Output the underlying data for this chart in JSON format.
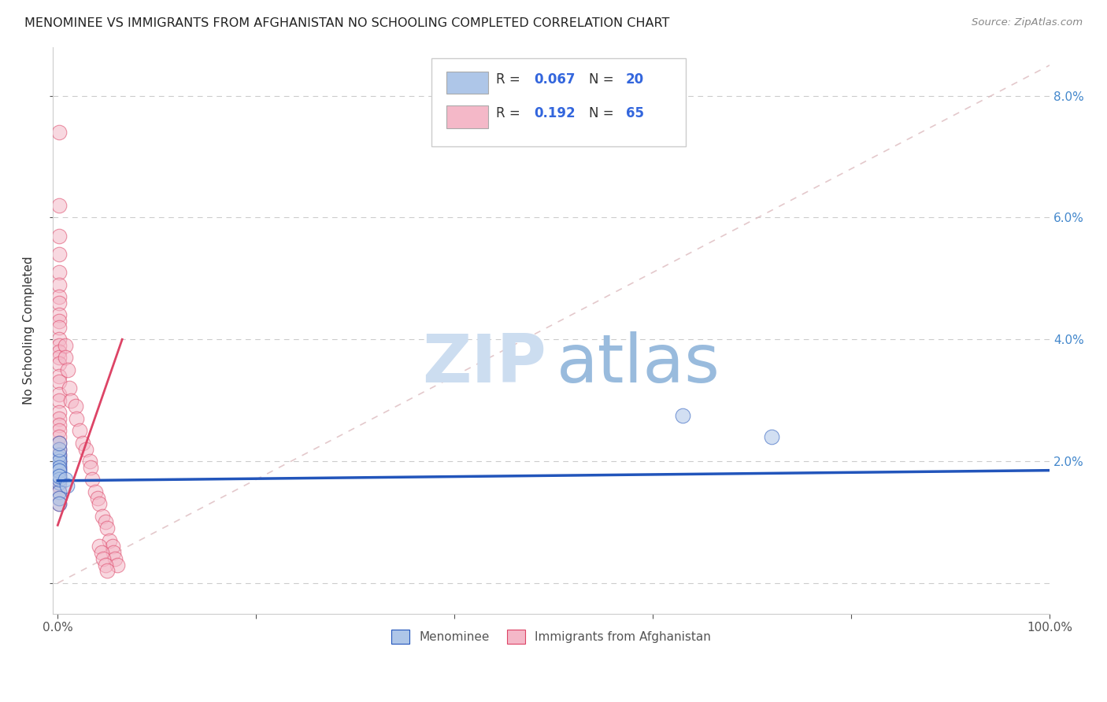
{
  "title": "MENOMINEE VS IMMIGRANTS FROM AFGHANISTAN NO SCHOOLING COMPLETED CORRELATION CHART",
  "source": "Source: ZipAtlas.com",
  "ylabel": "No Schooling Completed",
  "color_blue": "#aec6e8",
  "color_pink": "#f4b8c8",
  "line_blue": "#2255bb",
  "line_pink": "#dd4466",
  "line_diag_color": "#ddbbbf",
  "watermark_zip_color": "#ccddf0",
  "watermark_atlas_color": "#99bbdd",
  "menominee_x": [
    0.001,
    0.001,
    0.001,
    0.001,
    0.001,
    0.001,
    0.001,
    0.001,
    0.001,
    0.001,
    0.001,
    0.001,
    0.001,
    0.001,
    0.001,
    0.001,
    0.008,
    0.009,
    0.63,
    0.72
  ],
  "menominee_y": [
    0.0195,
    0.0205,
    0.021,
    0.02,
    0.0185,
    0.0175,
    0.0165,
    0.022,
    0.023,
    0.015,
    0.014,
    0.013,
    0.019,
    0.0185,
    0.017,
    0.0175,
    0.017,
    0.016,
    0.0275,
    0.024
  ],
  "afghan_x": [
    0.001,
    0.001,
    0.001,
    0.001,
    0.001,
    0.001,
    0.001,
    0.001,
    0.001,
    0.001,
    0.001,
    0.001,
    0.001,
    0.001,
    0.001,
    0.001,
    0.001,
    0.001,
    0.001,
    0.001,
    0.001,
    0.001,
    0.001,
    0.001,
    0.001,
    0.001,
    0.001,
    0.001,
    0.001,
    0.001,
    0.001,
    0.001,
    0.001,
    0.001,
    0.001,
    0.001,
    0.008,
    0.008,
    0.01,
    0.012,
    0.013,
    0.018,
    0.019,
    0.022,
    0.025,
    0.028,
    0.032,
    0.033,
    0.035,
    0.038,
    0.04,
    0.042,
    0.045,
    0.048,
    0.05,
    0.052,
    0.055,
    0.056,
    0.058,
    0.06,
    0.042,
    0.044,
    0.046,
    0.048,
    0.05
  ],
  "afghan_y": [
    0.074,
    0.062,
    0.057,
    0.054,
    0.051,
    0.049,
    0.047,
    0.046,
    0.044,
    0.043,
    0.042,
    0.04,
    0.039,
    0.038,
    0.037,
    0.036,
    0.034,
    0.033,
    0.031,
    0.03,
    0.028,
    0.027,
    0.026,
    0.025,
    0.024,
    0.023,
    0.022,
    0.021,
    0.02,
    0.019,
    0.018,
    0.017,
    0.016,
    0.015,
    0.014,
    0.013,
    0.039,
    0.037,
    0.035,
    0.032,
    0.03,
    0.029,
    0.027,
    0.025,
    0.023,
    0.022,
    0.02,
    0.019,
    0.017,
    0.015,
    0.014,
    0.013,
    0.011,
    0.01,
    0.009,
    0.007,
    0.006,
    0.005,
    0.004,
    0.003,
    0.006,
    0.005,
    0.004,
    0.003,
    0.002
  ],
  "blue_line_x": [
    0.0,
    1.0
  ],
  "blue_line_y": [
    0.0168,
    0.0185
  ],
  "pink_line_x": [
    0.0,
    0.065
  ],
  "pink_line_y": [
    0.0095,
    0.04
  ],
  "diag_line_x": [
    0.0,
    1.0
  ],
  "diag_line_y": [
    0.0,
    0.085
  ],
  "xlim": [
    -0.005,
    1.0
  ],
  "ylim": [
    -0.005,
    0.088
  ]
}
